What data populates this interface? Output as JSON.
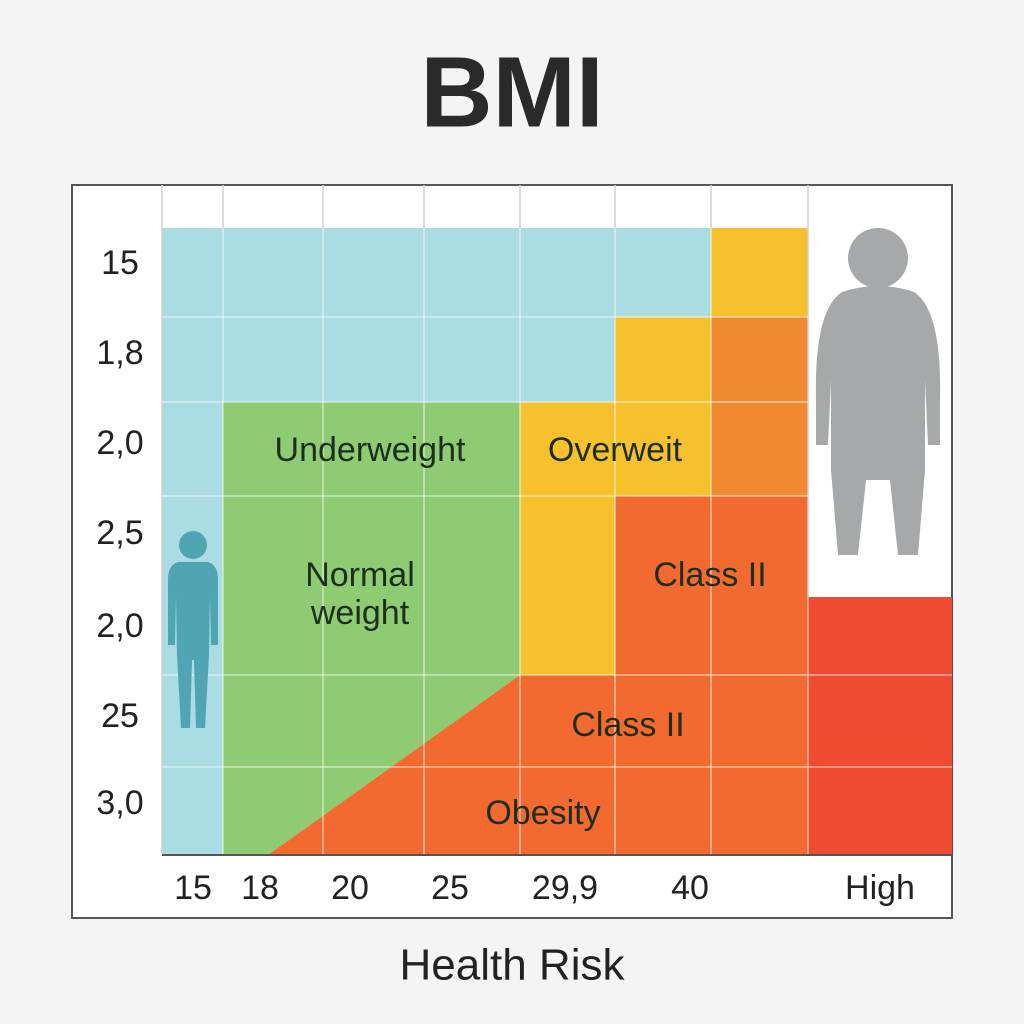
{
  "title": "BMI",
  "row_labels": [
    "15",
    "1,8",
    "2,0",
    "2,5",
    "2,0",
    "25",
    "3,0"
  ],
  "column_labels": [
    "15",
    "18",
    "20",
    "25",
    "29,9",
    "40",
    "High"
  ],
  "regions": [
    "Underweight",
    "Overweit",
    "Normal weight",
    "Class II",
    "Class II",
    "Obesity"
  ],
  "footer": "Health Risk"
}
